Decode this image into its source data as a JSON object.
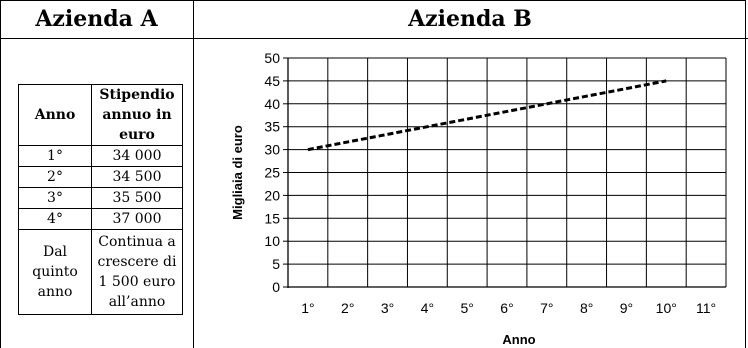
{
  "headers": {
    "company_a": "Azienda A",
    "company_b": "Azienda B"
  },
  "table": {
    "col_year": "Anno",
    "col_salary": [
      "Stipendio",
      "annuo in",
      "euro"
    ],
    "rows": [
      {
        "year": "1°",
        "salary": "34 000"
      },
      {
        "year": "2°",
        "salary": "34 500"
      },
      {
        "year": "3°",
        "salary": "35 500"
      },
      {
        "year": "4°",
        "salary": "37 000"
      }
    ],
    "last_row": {
      "year_lines": [
        "Dal",
        "quinto",
        "anno"
      ],
      "salary_lines": [
        "Continua a",
        "crescere di",
        "1 500 euro",
        "all’anno"
      ]
    }
  },
  "chart_data": {
    "type": "line",
    "xlabel": "Anno",
    "ylabel": "Migliaia di euro",
    "categories": [
      "1°",
      "2°",
      "3°",
      "4°",
      "5°",
      "6°",
      "7°",
      "8°",
      "9°",
      "10°",
      "11°"
    ],
    "x_start": 1,
    "x_end": 10,
    "y_start": 30,
    "y_end": 45,
    "ylim": [
      0,
      50
    ],
    "yticks": [
      0,
      5,
      10,
      15,
      20,
      25,
      30,
      35,
      40,
      45,
      50
    ],
    "line_style": "dashed",
    "grid": true,
    "color": "#000000"
  }
}
